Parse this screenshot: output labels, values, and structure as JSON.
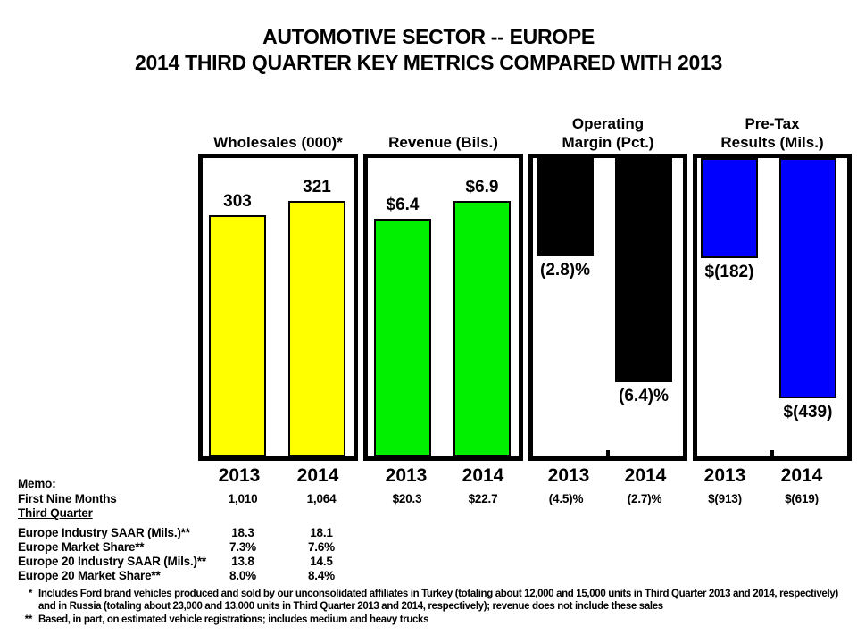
{
  "title": {
    "line1": "AUTOMOTIVE SECTOR -- EUROPE",
    "line2": "2014 THIRD QUARTER KEY METRICS COMPARED WITH 2013"
  },
  "chart_data": {
    "type": "bar",
    "categories": [
      "2013",
      "2014"
    ],
    "layout": {
      "grid": false,
      "value_labels": true,
      "negative_bars_hang_from_top": true
    },
    "panels": [
      {
        "title": "Wholesales (000)*",
        "values": [
          303,
          321
        ],
        "bar_labels": [
          "303",
          "321"
        ],
        "color": "#FFFF00",
        "axis_max": 375
      },
      {
        "title": "Revenue (Bils.)",
        "values": [
          6.4,
          6.9
        ],
        "bar_labels": [
          "$6.4",
          "$6.9"
        ],
        "color": "#00F000",
        "axis_max": 8.05
      },
      {
        "title": "Operating\nMargin (Pct.)",
        "values": [
          -2.8,
          -6.4
        ],
        "bar_labels": [
          "(2.8)%",
          "(6.4)%"
        ],
        "color": "#000000",
        "axis_max": 8.5
      },
      {
        "title": "Pre-Tax\nResults (Mils.)",
        "values": [
          -182,
          -439
        ],
        "bar_labels": [
          "$(182)",
          "$(439)"
        ],
        "color": "#0000FF",
        "axis_max": 545
      }
    ]
  },
  "memo": {
    "heading": "Memo:",
    "rows": [
      {
        "label": "First Nine Months",
        "values": [
          "1,010",
          "1,064",
          "$20.3",
          "$22.7",
          "(4.5)%",
          "(2.7)%",
          "$(913)",
          "$(619)"
        ]
      },
      {
        "label": "Third Quarter",
        "values": []
      },
      {
        "label": "Europe Industry SAAR (Mils.)**",
        "values": [
          "18.3",
          "18.1"
        ]
      },
      {
        "label": "Europe Market Share**",
        "values": [
          "7.3%",
          "7.6%"
        ]
      },
      {
        "label": "Europe 20 Industry SAAR (Mils.)**",
        "values": [
          "13.8",
          "14.5"
        ]
      },
      {
        "label": "Europe 20 Market Share**",
        "values": [
          "8.0%",
          "8.4%"
        ]
      }
    ]
  },
  "footnotes": [
    {
      "marker": "*",
      "text": "Includes Ford brand vehicles produced and sold by our unconsolidated affiliates in Turkey (totaling about 12,000 and 15,000 units in Third Quarter 2013 and 2014, respectively) and in Russia (totaling about 23,000 and 13,000 units in Third Quarter 2013 and 2014, respectively); revenue does not include these sales"
    },
    {
      "marker": "**",
      "text": "Based, in part, on estimated vehicle registrations; includes medium and heavy trucks"
    }
  ]
}
